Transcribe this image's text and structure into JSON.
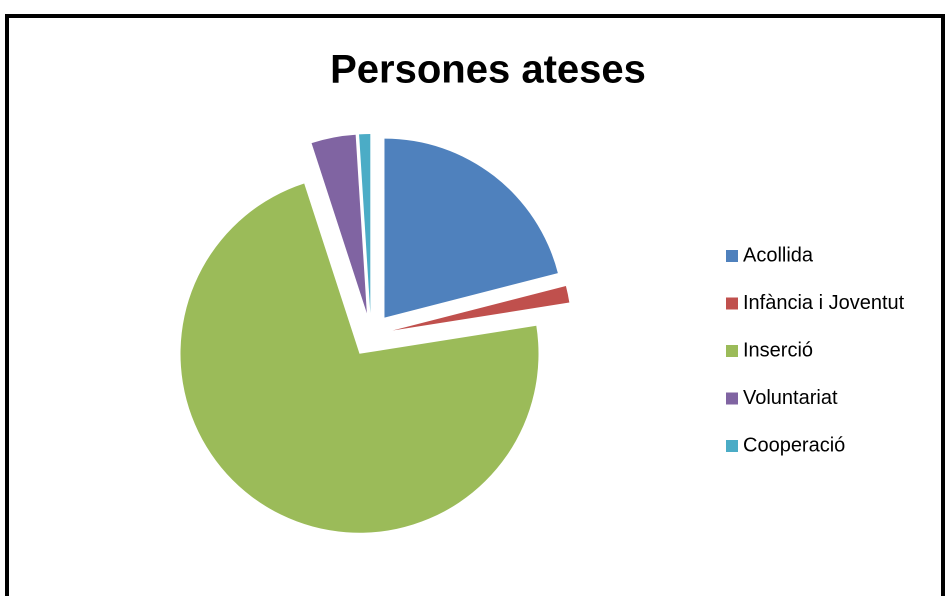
{
  "chart_data": {
    "type": "pie",
    "title": "Persones ateses",
    "categories": [
      "Acollida",
      "Infància i Joventut",
      "Inserció",
      "Voluntariat",
      "Cooperació"
    ],
    "values": [
      21,
      1.5,
      72.5,
      4,
      1
    ],
    "colors": [
      "#4f81bd",
      "#c0504d",
      "#9bbb59",
      "#8064a2",
      "#4bacc6"
    ],
    "legend": "right"
  }
}
